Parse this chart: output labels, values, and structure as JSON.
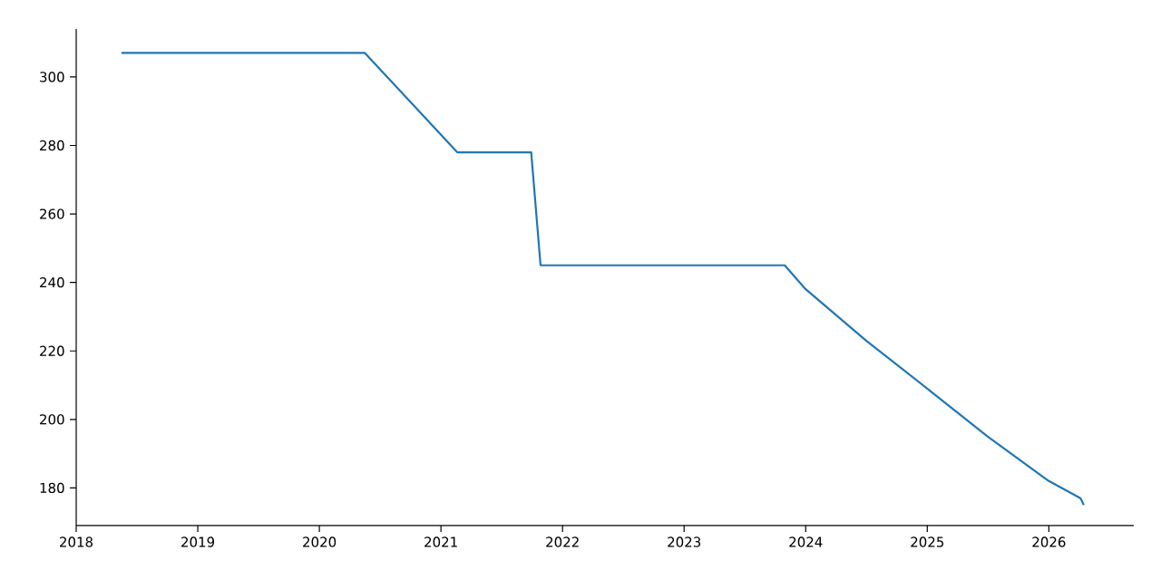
{
  "chart_data": {
    "type": "line",
    "x": [
      "2018-05-17",
      "2020-05-17",
      "2021-02-19",
      "2021-09-29",
      "2021-10-27",
      "2023-10-30",
      "2024-01-01",
      "2024-07-01",
      "2025-01-01",
      "2025-07-01",
      "2026-01-01",
      "2026-04-06",
      "2026-04-16"
    ],
    "values": [
      307,
      307,
      278,
      278,
      245,
      245,
      238,
      223,
      209,
      195,
      182,
      177,
      175
    ],
    "color": "#1f77b4",
    "xlim": [
      "2018-01-01",
      "2026-09-13"
    ],
    "ylim": [
      169,
      314
    ],
    "xticks": [
      {
        "value": "2018",
        "label": "2018"
      },
      {
        "value": "2019",
        "label": "2019"
      },
      {
        "value": "2020",
        "label": "2020"
      },
      {
        "value": "2021",
        "label": "2021"
      },
      {
        "value": "2022",
        "label": "2022"
      },
      {
        "value": "2023",
        "label": "2023"
      },
      {
        "value": "2024",
        "label": "2024"
      },
      {
        "value": "2025",
        "label": "2025"
      },
      {
        "value": "2026",
        "label": "2026"
      }
    ],
    "yticks": [
      180,
      200,
      220,
      240,
      260,
      280,
      300
    ],
    "grid": false,
    "marker": "none",
    "line_style": "solid"
  }
}
